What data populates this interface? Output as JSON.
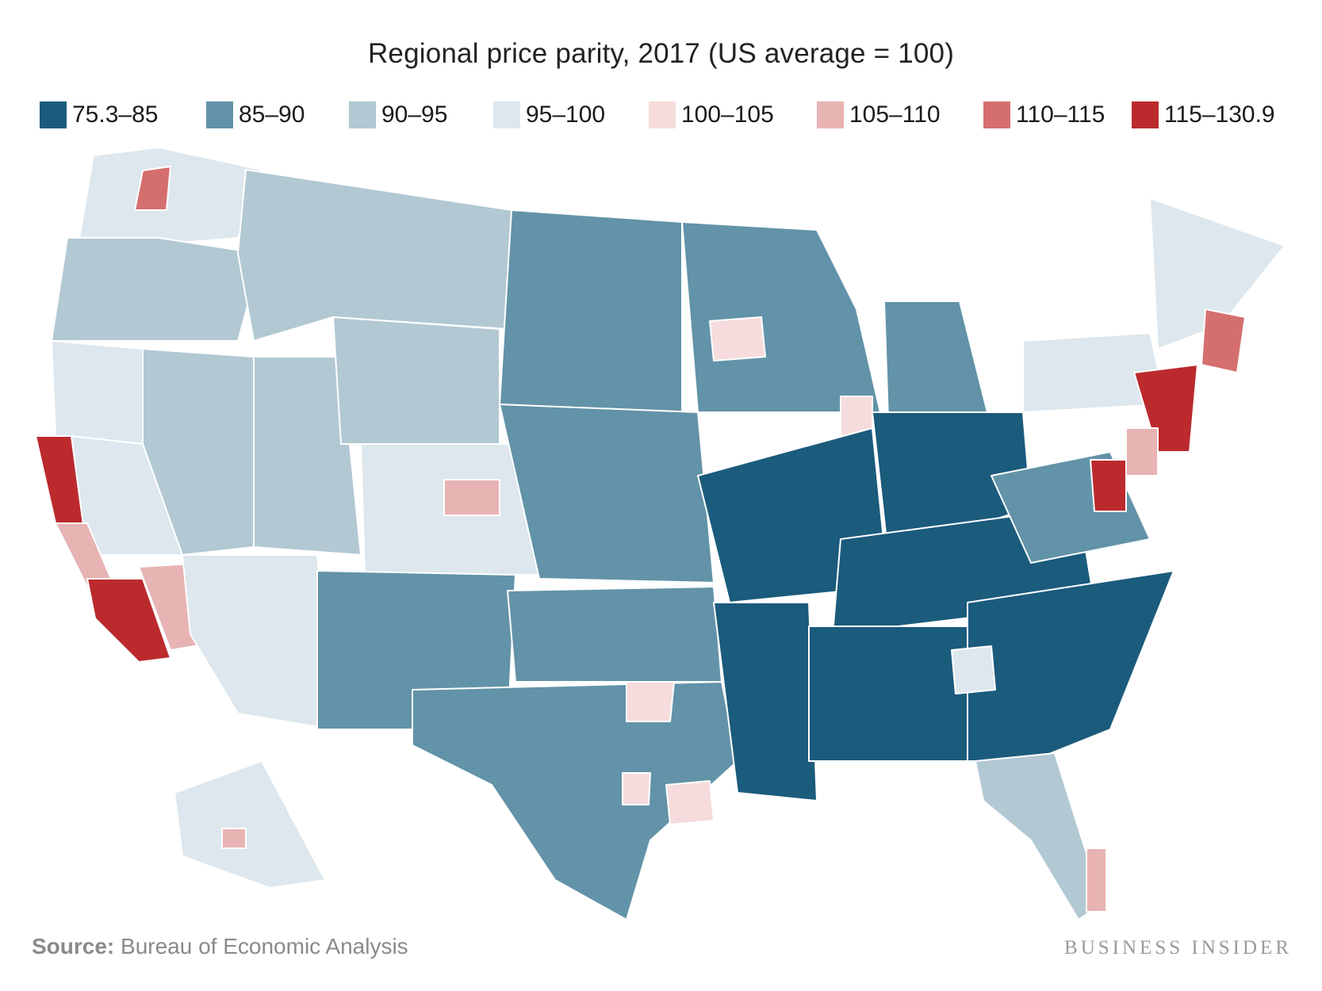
{
  "title": "Regional price parity, 2017 (US average = 100)",
  "legend": [
    {
      "label": "75.3–85",
      "color": "#1b5b7c"
    },
    {
      "label": "85–90",
      "color": "#6293a8"
    },
    {
      "label": "90–95",
      "color": "#b2c8d3"
    },
    {
      "label": "95–100",
      "color": "#dde7ed"
    },
    {
      "label": "100–105",
      "color": "#f6dcdc"
    },
    {
      "label": "105–110",
      "color": "#e8b3b3"
    },
    {
      "label": "110–115",
      "color": "#d56f6f"
    },
    {
      "label": "115–130.9",
      "color": "#bb2a2d"
    }
  ],
  "source_label": "Source:",
  "source_text": " Bureau of Economic Analysis",
  "brand": "BUSINESS INSIDER",
  "chart_data": {
    "type": "choropleth",
    "title": "Regional price parity, 2017 (US average = 100)",
    "value_bins": [
      "75.3–85",
      "85–90",
      "90–95",
      "95–100",
      "100–105",
      "105–110",
      "110–115",
      "115–130.9"
    ],
    "source": "Bureau of Economic Analysis"
  }
}
